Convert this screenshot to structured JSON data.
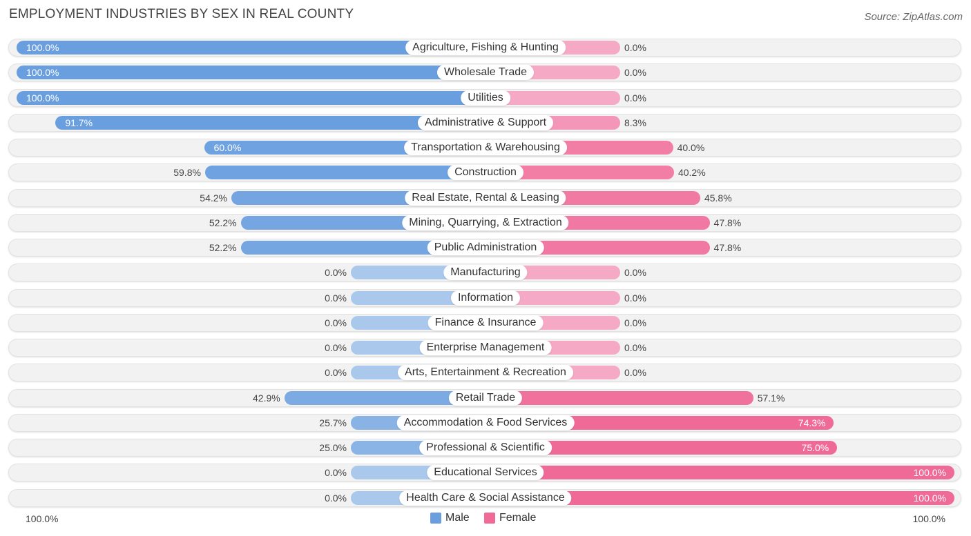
{
  "title": "EMPLOYMENT INDUSTRIES BY SEX IN REAL COUNTY",
  "source": "Source: ZipAtlas.com",
  "colors": {
    "male_strong": "#6a9fdf",
    "male_light": "#aac8ec",
    "female_strong": "#f06a98",
    "female_light": "#f5a9c4"
  },
  "legend": {
    "male": "Male",
    "female": "Female"
  },
  "axis": {
    "left": "100.0%",
    "right": "100.0%"
  },
  "chart_data": {
    "type": "bar",
    "orientation": "horizontal-diverging",
    "title": "EMPLOYMENT INDUSTRIES BY SEX IN REAL COUNTY",
    "categories": [
      "Agriculture, Fishing & Hunting",
      "Wholesale Trade",
      "Utilities",
      "Administrative & Support",
      "Transportation & Warehousing",
      "Construction",
      "Real Estate, Rental & Leasing",
      "Mining, Quarrying, & Extraction",
      "Public Administration",
      "Manufacturing",
      "Information",
      "Finance & Insurance",
      "Enterprise Management",
      "Arts, Entertainment & Recreation",
      "Retail Trade",
      "Accommodation & Food Services",
      "Professional & Scientific",
      "Educational Services",
      "Health Care & Social Assistance"
    ],
    "series": [
      {
        "name": "Male",
        "values": [
          100.0,
          100.0,
          100.0,
          91.7,
          60.0,
          59.8,
          54.2,
          52.2,
          52.2,
          0.0,
          0.0,
          0.0,
          0.0,
          0.0,
          42.9,
          25.7,
          25.0,
          0.0,
          0.0
        ],
        "labels": [
          "100.0%",
          "100.0%",
          "100.0%",
          "91.7%",
          "60.0%",
          "59.8%",
          "54.2%",
          "52.2%",
          "52.2%",
          "0.0%",
          "0.0%",
          "0.0%",
          "0.0%",
          "0.0%",
          "42.9%",
          "25.7%",
          "25.0%",
          "0.0%",
          "0.0%"
        ]
      },
      {
        "name": "Female",
        "values": [
          0.0,
          0.0,
          0.0,
          8.3,
          40.0,
          40.2,
          45.8,
          47.8,
          47.8,
          0.0,
          0.0,
          0.0,
          0.0,
          0.0,
          57.1,
          74.3,
          75.0,
          100.0,
          100.0
        ],
        "labels": [
          "0.0%",
          "0.0%",
          "0.0%",
          "8.3%",
          "40.0%",
          "40.2%",
          "45.8%",
          "47.8%",
          "47.8%",
          "0.0%",
          "0.0%",
          "0.0%",
          "0.0%",
          "0.0%",
          "57.1%",
          "74.3%",
          "75.0%",
          "100.0%",
          "100.0%"
        ]
      }
    ],
    "xlim": [
      0,
      100
    ],
    "legend_position": "bottom-center"
  }
}
